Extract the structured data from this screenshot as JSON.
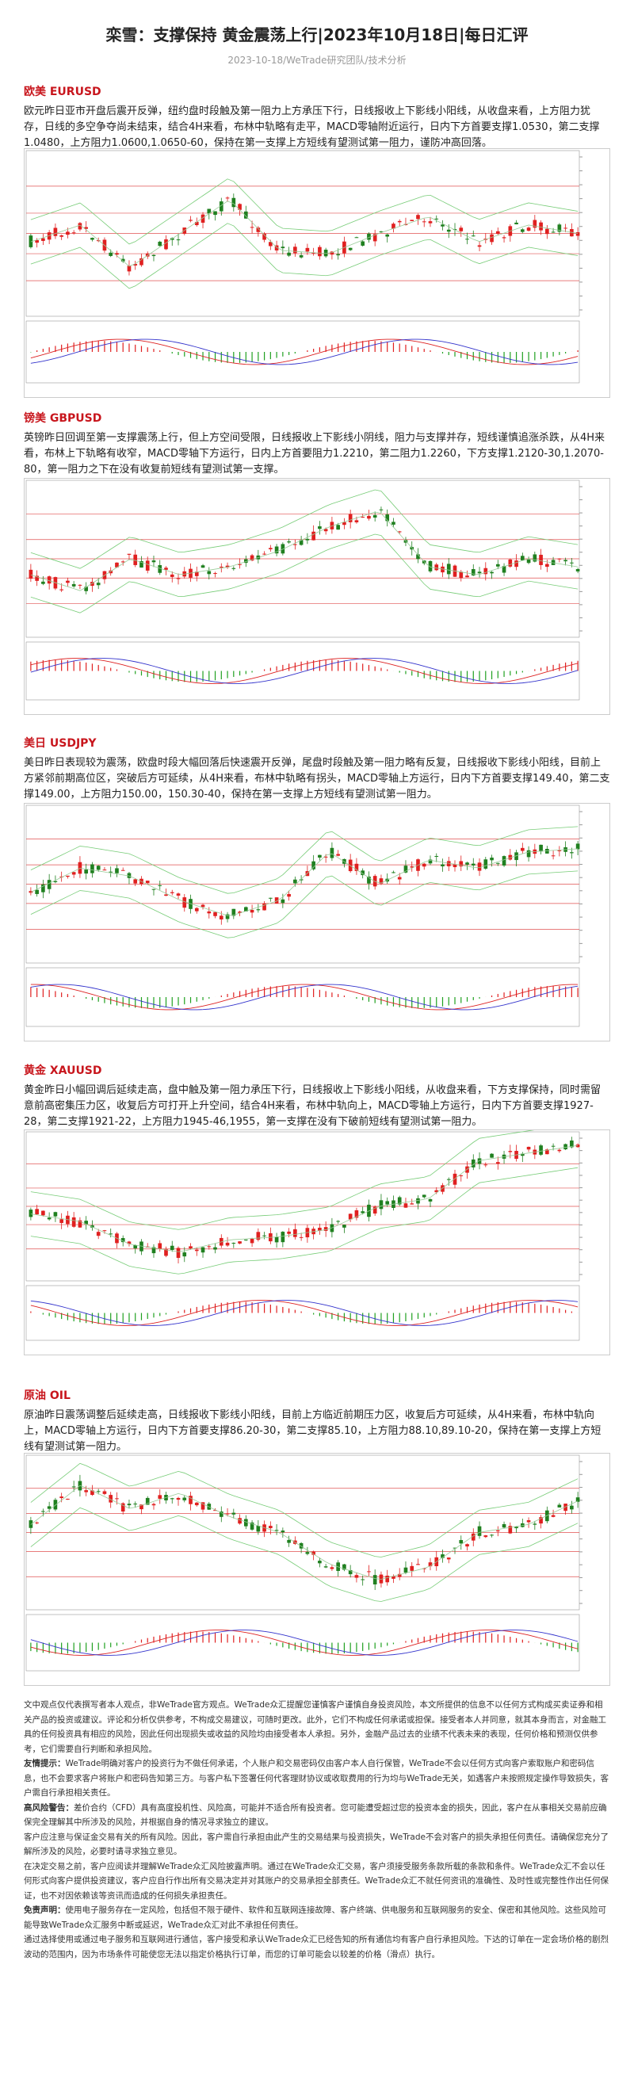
{
  "header": {
    "title": "栾雪：支撑保持 黄金震荡上行|2023年10月18日|每日汇评",
    "subtitle": "2023-10-18/WeTrade研究团队/技术分析"
  },
  "sections": [
    {
      "heading": "欧美 EURUSD",
      "body": "欧元昨日亚市开盘后震开反弹，纽约盘时段触及第一阻力上方承压下行，日线报收上下影线小阳线，从收盘来看，上方阻力犹存，日线的多空争夺尚未结束，结合4H来看，布林中轨略有走平，MACD零轴附近运行，日内下方首要支撑1.0530，第二支撑1.0480，上方阻力1.0600,1.0650-60，保持在第一支撑上方短线有望测试第一阻力，谨防冲高回落。"
    },
    {
      "heading": "镑美 GBPUSD",
      "body": "英镑昨日回调至第一支撑震荡上行，但上方空间受限，日线报收上下影线小阴线，阻力与支撑并存，短线谨慎追涨杀跌，从4H来看，布林上下轨略有收窄，MACD零轴下方运行，日内上方首要阻力1.2210，第二阻力1.2260，下方支撑1.2120-30,1.2070-80，第一阻力之下在没有收复前短线有望测试第一支撑。"
    },
    {
      "heading": "美日 USDJPY",
      "body": "美日昨日表现较为震荡，欧盘时段大幅回落后快速震开反弹，尾盘时段触及第一阻力略有反复，日线报收下影线小阳线，目前上方紧邻前期高位区，突破后方可延续，从4H来看，布林中轨略有拐头，MACD零轴上方运行，日内下方首要支撑149.40，第二支撑149.00，上方阻力150.00，150.30-40，保持在第一支撑上方短线有望测试第一阻力。"
    },
    {
      "heading": "黄金 XAUUSD",
      "body": "黄金昨日小幅回调后延续走高，盘中触及第一阻力承压下行，日线报收上下影线小阳线，从收盘来看，下方支撑保持，同时需留意前高密集压力区，收复后方可打开上升空间，结合4H来看，布林中轨向上，MACD零轴上方运行，日内下方首要支撑1927-28，第二支撑1921-22，上方阻力1945-46,1955，第一支撑在没有下破前短线有望测试第一阻力。"
    },
    {
      "heading": "原油 OIL",
      "body": "原油昨日震荡调整后延续走高，日线报收下影线小阳线，目前上方临近前期压力区，收复后方可延续，从4H来看，布林中轨向上，MACD零轴上方运行，日内下方首要支撑86.20-30，第二支撑85.10，上方阻力88.10,89.10-20，保持在第一支撑上方短线有望测试第一阻力。"
    }
  ],
  "disclaimer": [
    {
      "text": "文中观点仅代表撰写者本人观点，非WeTrade官方观点。WeTrade众汇提醒您谨慎客户谨慎自身投资风险，本文所提供的信息不以任何方式构成买卖证券和相关产品的投资或建议。评论和分析仅供参考，不构成交易建议，可随时更改。此外，它们不构成任何承诺或担保。接受者本人并同意，就其本身而言，对金融工具的任何投资具有相应的风险，因此任何出现损失或收益的风险均由接受者本人承担。另外，金融产品过去的业绩不代表未来的表现，任何价格和预测仅供参考，它们需要自行判断和承担风险。"
    },
    {
      "label": "友情提示：",
      "text": "WeTrade明确对客户的投资行为不做任何承诺，个人账户和交易密码仅由客户本人自行保管，WeTrade不会以任何方式向客户索取账户和密码信息，也不会要求客户将账户和密码告知第三方。与客户私下签署任何代客理财协议或收取费用的行为均与WeTrade无关，如遇客户未按照规定操作导致损失，客户需自行承担相关责任。"
    },
    {
      "label": "高风险警告：",
      "text": "差价合约（CFD）具有高度投机性、风险高，可能并不适合所有投资者。您可能遭受超过您的投资本金的损失，因此，客户在从事相关交易前应确保完全理解其中所涉及的风险，并根据自身的情况寻求独立的建议。"
    },
    {
      "text": "客户应注意与保证金交易有关的所有风险。因此，客户需自行承担由此产生的交易结果与投资损失，WeTrade不会对客户的损失承担任何责任。请确保您充分了解所涉及的风险，必要时请寻求独立意见。"
    },
    {
      "text": "在决定交易之前，客户应阅读并理解WeTrade众汇风险披露声明。通过在WeTrade众汇交易，客户须接受服务条款所载的条款和条件。WeTrade众汇不会以任何形式向客户提供投资建议，客户应自行作出所有交易决定并对其账户的交易承担全部责任。WeTrade众汇不就任何资讯的准确性、及时性或完整性作出任何保证，也不对因依赖该等资讯而造成的任何损失承担责任。"
    },
    {
      "label": "免责声明：",
      "text": "使用电子服务存在一定风险，包括但不限于硬件、软件和互联网连接故障、客户终端、供电服务和互联网服务的安全、保密和其他风险。这些风险可能导致WeTrade众汇服务中断或延迟，WeTrade众汇对此不承担任何责任。"
    },
    {
      "text": "通过选择使用或通过电子服务和互联网进行通信，客户接受和承认WeTrade众汇已经告知的所有通信均有客户自行承担风险。下达的订单在一定会场价格的剧烈波动的范围内，因为市场条件可能使您无法以指定价格执行订单，而您的订单可能会以较差的价格（滑点）执行。"
    }
  ]
}
